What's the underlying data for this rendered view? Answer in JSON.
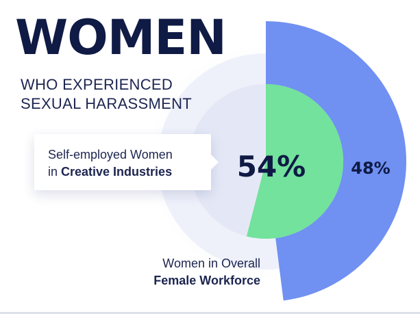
{
  "title": "WOMEN",
  "subtitle": {
    "line1": "WHO EXPERIENCED",
    "line2": "SEXUAL HARASSMENT"
  },
  "callout": {
    "line1": "Self-employed Women",
    "line2_prefix": "in ",
    "line2_bold": "Creative Industries"
  },
  "bottom_label": {
    "line1": "Women in Overall",
    "line2": "Female Workforce"
  },
  "colors": {
    "title": "#0f1a45",
    "outer_fan": "#7090f2",
    "inner_fan": "#72e29c",
    "halo": "#eef1fa",
    "inner_disc": "#e4e8f6"
  },
  "chart_data": {
    "type": "pie",
    "series": [
      {
        "category": "Self-employed Women in Creative Industries",
        "value": 54,
        "label": "54%"
      },
      {
        "category": "Women in Overall Female Workforce",
        "value": 48,
        "label": "48%"
      }
    ]
  }
}
